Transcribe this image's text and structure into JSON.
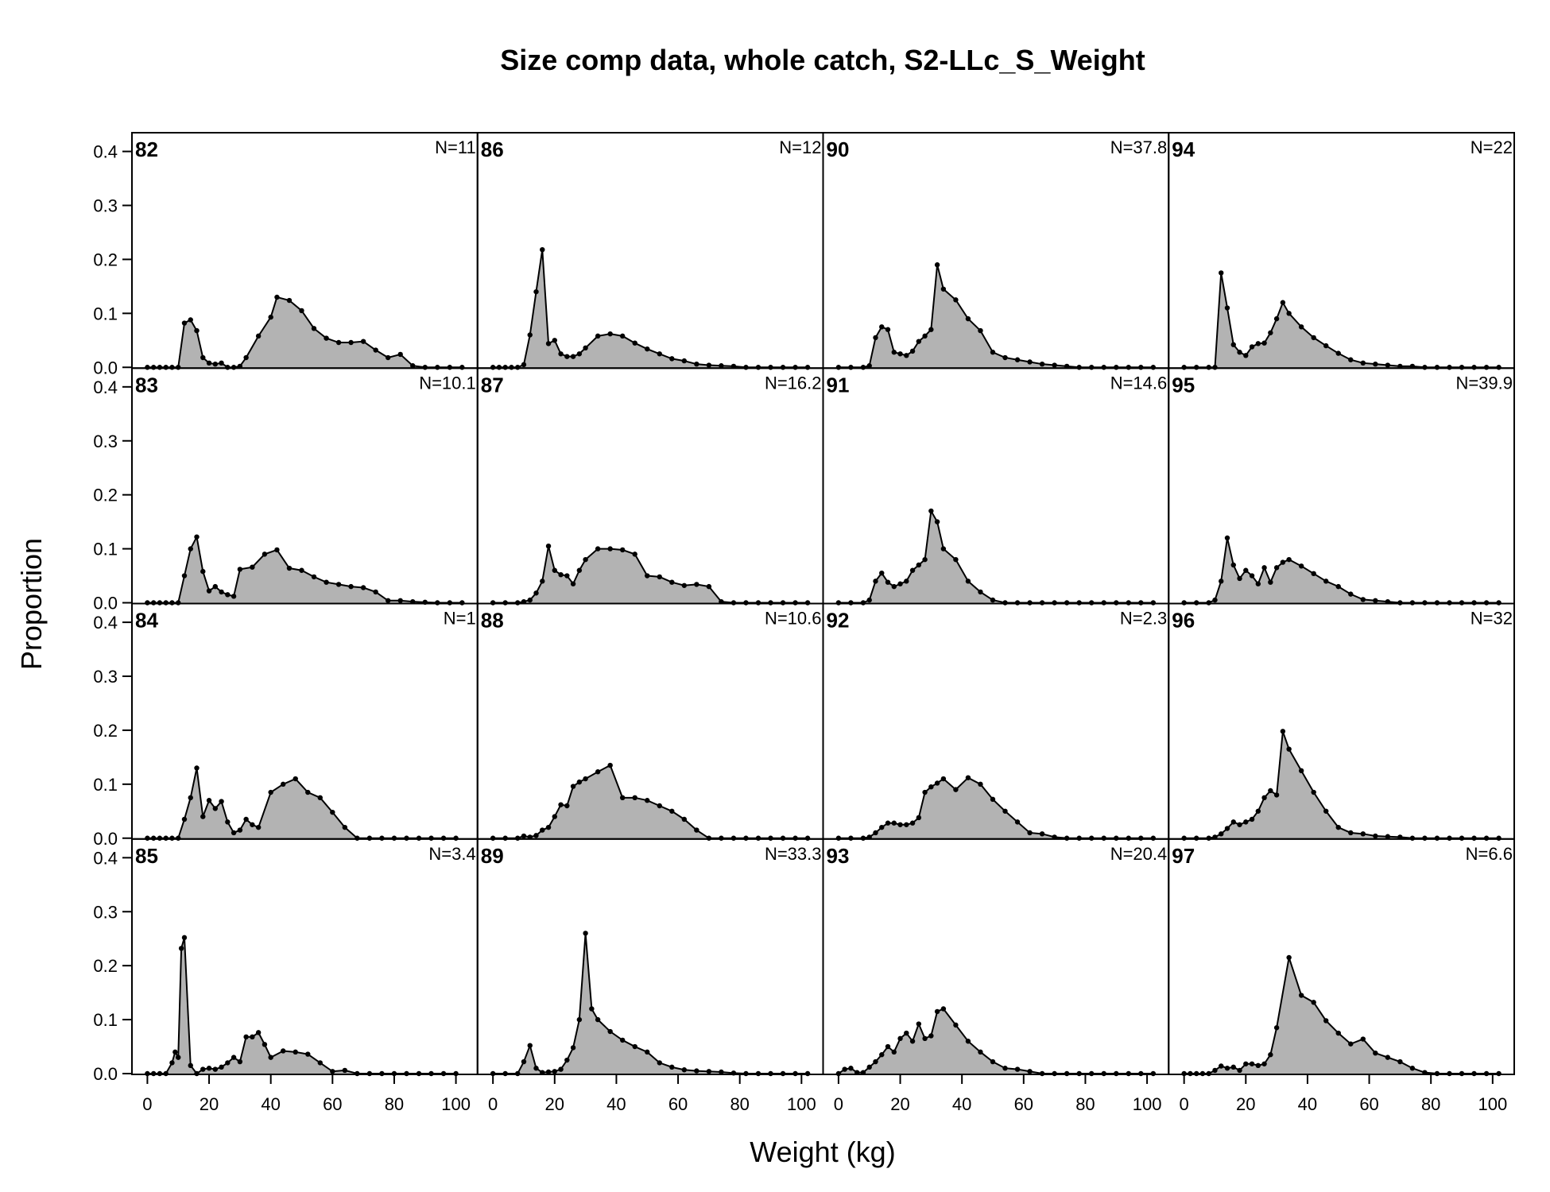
{
  "chart_data": {
    "type": "area",
    "title": "Size comp data, whole catch, S2-LLc_S_Weight",
    "xlabel": "Weight (kg)",
    "ylabel": "Proportion",
    "xlim": [
      -5,
      107
    ],
    "ylim": [
      0,
      0.42
    ],
    "x_ticks": [
      0,
      20,
      40,
      60,
      80,
      100
    ],
    "y_ticks": [
      "0.0",
      "0.1",
      "0.2",
      "0.3",
      "0.4"
    ],
    "grid": false,
    "layout_note": "4x4 multi-panel, columns by year",
    "panels": [
      {
        "year": "82",
        "n": "N=11",
        "x": [
          0,
          2,
          4,
          6,
          8,
          10,
          12,
          14,
          16,
          18,
          20,
          22,
          24,
          26,
          28,
          30,
          32,
          36,
          40,
          42,
          46,
          50,
          54,
          58,
          62,
          66,
          70,
          74,
          78,
          82,
          86,
          90,
          94,
          98,
          102
        ],
        "y": [
          0,
          0,
          0,
          0,
          0,
          0,
          0.082,
          0.088,
          0.068,
          0.018,
          0.008,
          0.006,
          0.008,
          0,
          0,
          0.002,
          0.018,
          0.058,
          0.093,
          0.13,
          0.124,
          0.105,
          0.072,
          0.054,
          0.046,
          0.046,
          0.048,
          0.032,
          0.018,
          0.024,
          0.003,
          0,
          0,
          0,
          0
        ]
      },
      {
        "year": "83",
        "n": "N=10.1",
        "x": [
          0,
          2,
          4,
          6,
          8,
          10,
          12,
          14,
          16,
          18,
          20,
          22,
          24,
          26,
          28,
          30,
          34,
          38,
          42,
          46,
          50,
          54,
          58,
          62,
          66,
          70,
          74,
          78,
          82,
          86,
          90,
          94,
          98,
          102
        ],
        "y": [
          0,
          0,
          0,
          0,
          0,
          0,
          0.05,
          0.1,
          0.122,
          0.058,
          0.022,
          0.03,
          0.02,
          0.015,
          0.012,
          0.062,
          0.066,
          0.09,
          0.098,
          0.064,
          0.06,
          0.048,
          0.038,
          0.034,
          0.03,
          0.028,
          0.02,
          0.004,
          0.004,
          0.002,
          0.001,
          0,
          0,
          0
        ]
      },
      {
        "year": "84",
        "n": "N=1",
        "x": [
          0,
          2,
          4,
          6,
          8,
          10,
          12,
          14,
          16,
          18,
          20,
          22,
          24,
          26,
          28,
          30,
          32,
          34,
          36,
          40,
          44,
          48,
          52,
          56,
          60,
          64,
          68,
          72,
          76,
          80,
          84,
          88,
          92,
          96,
          100
        ],
        "y": [
          0,
          0,
          0,
          0,
          0,
          0,
          0.035,
          0.075,
          0.13,
          0.04,
          0.07,
          0.055,
          0.068,
          0.03,
          0.01,
          0.015,
          0.035,
          0.025,
          0.02,
          0.085,
          0.1,
          0.11,
          0.085,
          0.075,
          0.048,
          0.02,
          0,
          0,
          0,
          0,
          0,
          0,
          0,
          0,
          0
        ]
      },
      {
        "year": "85",
        "n": "N=3.4",
        "x": [
          0,
          2,
          4,
          6,
          8,
          9,
          10,
          11,
          12,
          14,
          16,
          18,
          20,
          22,
          24,
          26,
          28,
          30,
          32,
          34,
          36,
          38,
          40,
          44,
          48,
          52,
          56,
          60,
          64,
          68,
          72,
          76,
          80,
          84,
          88,
          92,
          96,
          100
        ],
        "y": [
          0,
          0,
          0,
          0,
          0.02,
          0.04,
          0.03,
          0.232,
          0.252,
          0.015,
          0,
          0.008,
          0.01,
          0.008,
          0.012,
          0.02,
          0.03,
          0.022,
          0.068,
          0.068,
          0.076,
          0.054,
          0.03,
          0.042,
          0.04,
          0.036,
          0.02,
          0.004,
          0.006,
          0,
          0,
          0,
          0,
          0,
          0,
          0,
          0,
          0
        ]
      },
      {
        "year": "86",
        "n": "N=12",
        "x": [
          0,
          2,
          4,
          6,
          8,
          10,
          12,
          14,
          16,
          18,
          20,
          22,
          24,
          26,
          28,
          30,
          34,
          38,
          42,
          46,
          50,
          54,
          58,
          62,
          66,
          70,
          74,
          78,
          82,
          86,
          90,
          94,
          98,
          102
        ],
        "y": [
          0,
          0,
          0,
          0,
          0,
          0.005,
          0.06,
          0.14,
          0.218,
          0.044,
          0.05,
          0.025,
          0.02,
          0.02,
          0.025,
          0.036,
          0.058,
          0.062,
          0.058,
          0.045,
          0.034,
          0.025,
          0.016,
          0.012,
          0.006,
          0.004,
          0.003,
          0.002,
          0,
          0,
          0,
          0,
          0,
          0
        ]
      },
      {
        "year": "87",
        "n": "N=16.2",
        "x": [
          0,
          4,
          8,
          10,
          12,
          14,
          16,
          18,
          20,
          22,
          24,
          26,
          28,
          30,
          34,
          38,
          42,
          46,
          50,
          54,
          58,
          62,
          66,
          70,
          74,
          78,
          82,
          86,
          90,
          94,
          98,
          102
        ],
        "y": [
          0,
          0,
          0,
          0.002,
          0.005,
          0.018,
          0.04,
          0.105,
          0.06,
          0.052,
          0.05,
          0.035,
          0.06,
          0.08,
          0.1,
          0.1,
          0.098,
          0.09,
          0.05,
          0.048,
          0.038,
          0.032,
          0.034,
          0.03,
          0.002,
          0,
          0,
          0,
          0,
          0,
          0,
          0
        ]
      },
      {
        "year": "88",
        "n": "N=10.6",
        "x": [
          0,
          4,
          8,
          10,
          12,
          14,
          16,
          18,
          20,
          22,
          24,
          26,
          28,
          30,
          34,
          38,
          42,
          46,
          50,
          54,
          58,
          62,
          66,
          70,
          74,
          78,
          82,
          86,
          90,
          94,
          98,
          102
        ],
        "y": [
          0,
          0,
          0,
          0.004,
          0.002,
          0.005,
          0.015,
          0.02,
          0.04,
          0.062,
          0.06,
          0.096,
          0.104,
          0.11,
          0.123,
          0.135,
          0.075,
          0.075,
          0.07,
          0.06,
          0.05,
          0.035,
          0.015,
          0,
          0,
          0,
          0,
          0,
          0,
          0,
          0,
          0
        ]
      },
      {
        "year": "89",
        "n": "N=33.3",
        "x": [
          0,
          4,
          8,
          10,
          12,
          14,
          16,
          18,
          20,
          22,
          24,
          26,
          28,
          30,
          32,
          34,
          38,
          42,
          46,
          50,
          54,
          58,
          62,
          66,
          70,
          74,
          78,
          82,
          86,
          90,
          94,
          98,
          102
        ],
        "y": [
          0,
          0,
          0,
          0.022,
          0.052,
          0.01,
          0.002,
          0.003,
          0.004,
          0.008,
          0.025,
          0.048,
          0.1,
          0.26,
          0.12,
          0.1,
          0.078,
          0.062,
          0.05,
          0.04,
          0.02,
          0.012,
          0.007,
          0.005,
          0.004,
          0.003,
          0.001,
          0,
          0,
          0,
          0,
          0,
          0
        ]
      },
      {
        "year": "90",
        "n": "N=37.8",
        "x": [
          0,
          4,
          8,
          10,
          12,
          14,
          16,
          18,
          20,
          22,
          24,
          26,
          28,
          30,
          32,
          34,
          38,
          42,
          46,
          50,
          54,
          58,
          62,
          66,
          70,
          74,
          78,
          82,
          86,
          90,
          94,
          98,
          102
        ],
        "y": [
          0,
          0,
          0,
          0.003,
          0.055,
          0.075,
          0.07,
          0.028,
          0.025,
          0.022,
          0.03,
          0.048,
          0.058,
          0.07,
          0.19,
          0.145,
          0.125,
          0.09,
          0.068,
          0.028,
          0.018,
          0.014,
          0.01,
          0.006,
          0.004,
          0.002,
          0,
          0,
          0,
          0,
          0,
          0,
          0
        ]
      },
      {
        "year": "91",
        "n": "N=14.6",
        "x": [
          0,
          4,
          8,
          10,
          12,
          14,
          16,
          18,
          20,
          22,
          24,
          26,
          28,
          30,
          32,
          34,
          38,
          42,
          46,
          50,
          54,
          58,
          62,
          66,
          70,
          74,
          78,
          82,
          86,
          90,
          94,
          98,
          102
        ],
        "y": [
          0,
          0,
          0,
          0.005,
          0.04,
          0.055,
          0.038,
          0.03,
          0.035,
          0.04,
          0.06,
          0.07,
          0.08,
          0.17,
          0.15,
          0.1,
          0.08,
          0.04,
          0.02,
          0.005,
          0,
          0,
          0,
          0,
          0,
          0,
          0,
          0,
          0,
          0,
          0,
          0,
          0
        ]
      },
      {
        "year": "92",
        "n": "N=2.3",
        "x": [
          0,
          4,
          8,
          10,
          12,
          14,
          16,
          18,
          20,
          22,
          24,
          26,
          28,
          30,
          32,
          34,
          38,
          42,
          46,
          50,
          54,
          58,
          62,
          66,
          70,
          74,
          78,
          82,
          86,
          90,
          94,
          98,
          102
        ],
        "y": [
          0,
          0,
          0,
          0.002,
          0.01,
          0.02,
          0.028,
          0.028,
          0.025,
          0.025,
          0.028,
          0.038,
          0.085,
          0.095,
          0.102,
          0.11,
          0.09,
          0.112,
          0.1,
          0.072,
          0.05,
          0.03,
          0.01,
          0.008,
          0.002,
          0,
          0,
          0,
          0,
          0,
          0,
          0,
          0
        ]
      },
      {
        "year": "93",
        "n": "N=20.4",
        "x": [
          0,
          2,
          4,
          6,
          8,
          10,
          12,
          14,
          16,
          18,
          20,
          22,
          24,
          26,
          28,
          30,
          32,
          34,
          38,
          42,
          46,
          50,
          54,
          58,
          62,
          66,
          70,
          74,
          78,
          82,
          86,
          90,
          94,
          98,
          102
        ],
        "y": [
          0,
          0.008,
          0.01,
          0.002,
          0.002,
          0.012,
          0.022,
          0.035,
          0.05,
          0.04,
          0.065,
          0.075,
          0.06,
          0.092,
          0.065,
          0.07,
          0.115,
          0.12,
          0.09,
          0.06,
          0.04,
          0.022,
          0.01,
          0.008,
          0.004,
          0,
          0,
          0,
          0,
          0,
          0,
          0,
          0,
          0,
          0
        ]
      },
      {
        "year": "94",
        "n": "N=22",
        "x": [
          0,
          4,
          8,
          10,
          12,
          14,
          16,
          18,
          20,
          22,
          24,
          26,
          28,
          30,
          32,
          34,
          38,
          42,
          46,
          50,
          54,
          58,
          62,
          66,
          70,
          74,
          78,
          82,
          86,
          90,
          94,
          98,
          102
        ],
        "y": [
          0,
          0,
          0,
          0,
          0.175,
          0.11,
          0.042,
          0.028,
          0.022,
          0.038,
          0.044,
          0.045,
          0.064,
          0.09,
          0.12,
          0.1,
          0.075,
          0.055,
          0.04,
          0.026,
          0.014,
          0.008,
          0.006,
          0.004,
          0.002,
          0.002,
          0,
          0,
          0,
          0,
          0,
          0,
          0
        ]
      },
      {
        "year": "95",
        "n": "N=39.9",
        "x": [
          0,
          4,
          8,
          10,
          12,
          14,
          16,
          18,
          20,
          22,
          24,
          26,
          28,
          30,
          32,
          34,
          38,
          42,
          46,
          50,
          54,
          58,
          62,
          66,
          70,
          74,
          78,
          82,
          86,
          90,
          94,
          98,
          102
        ],
        "y": [
          0,
          0,
          0,
          0.005,
          0.04,
          0.12,
          0.07,
          0.045,
          0.06,
          0.05,
          0.035,
          0.065,
          0.038,
          0.065,
          0.075,
          0.08,
          0.068,
          0.054,
          0.04,
          0.03,
          0.016,
          0.006,
          0.004,
          0.002,
          0,
          0,
          0,
          0,
          0,
          0,
          0,
          0,
          0
        ]
      },
      {
        "year": "96",
        "n": "N=32",
        "x": [
          0,
          4,
          8,
          10,
          12,
          14,
          16,
          18,
          20,
          22,
          24,
          26,
          28,
          30,
          32,
          34,
          38,
          42,
          46,
          50,
          54,
          58,
          62,
          66,
          70,
          74,
          78,
          82,
          86,
          90,
          94,
          98,
          102
        ],
        "y": [
          0,
          0,
          0,
          0.002,
          0.008,
          0.018,
          0.03,
          0.025,
          0.03,
          0.035,
          0.05,
          0.075,
          0.088,
          0.08,
          0.198,
          0.165,
          0.125,
          0.085,
          0.05,
          0.02,
          0.01,
          0.008,
          0.004,
          0.003,
          0.002,
          0,
          0,
          0,
          0,
          0,
          0,
          0,
          0
        ]
      },
      {
        "year": "97",
        "n": "N=6.6",
        "x": [
          0,
          2,
          4,
          6,
          8,
          10,
          12,
          14,
          16,
          18,
          20,
          22,
          24,
          26,
          28,
          30,
          34,
          38,
          42,
          46,
          50,
          54,
          58,
          62,
          66,
          70,
          74,
          78,
          82,
          86,
          90,
          94,
          98,
          102
        ],
        "y": [
          0,
          0,
          0,
          0,
          0,
          0.006,
          0.014,
          0.01,
          0.012,
          0.006,
          0.018,
          0.018,
          0.015,
          0.018,
          0.035,
          0.085,
          0.215,
          0.145,
          0.132,
          0.098,
          0.075,
          0.055,
          0.064,
          0.038,
          0.03,
          0.022,
          0.01,
          0.002,
          0,
          0,
          0,
          0,
          0,
          0
        ]
      }
    ]
  }
}
